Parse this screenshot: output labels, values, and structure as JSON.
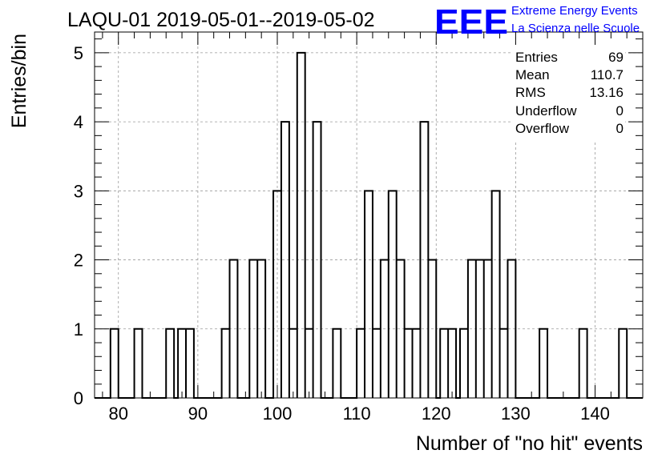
{
  "header": {
    "title": "LAQU-01 2019-05-01--2019-05-02",
    "logo_text": "EEE",
    "logo_line1": "Extreme Energy Events",
    "logo_line2": "La Scienza nelle Scuole",
    "logo_color": "#0000ff"
  },
  "stats": {
    "rows": [
      {
        "label": "Entries",
        "value": "69"
      },
      {
        "label": "Mean",
        "value": "110.7"
      },
      {
        "label": "RMS",
        "value": "13.16"
      },
      {
        "label": "Underflow",
        "value": "0"
      },
      {
        "label": "Overflow",
        "value": "0"
      }
    ]
  },
  "chart_data": {
    "type": "histogram",
    "title": "LAQU-01 2019-05-01--2019-05-02",
    "xlabel": "Number of \"no hit\" events",
    "ylabel": "Entries/bin",
    "xlim": [
      77,
      146
    ],
    "ylim": [
      0,
      5.3
    ],
    "bin_width": 1,
    "grid": true,
    "x_ticks": [
      80,
      90,
      100,
      110,
      120,
      130,
      140
    ],
    "y_ticks": [
      0,
      1,
      2,
      3,
      4,
      5
    ],
    "bins": [
      {
        "x": 79.5,
        "count": 1
      },
      {
        "x": 82.5,
        "count": 1
      },
      {
        "x": 86.5,
        "count": 1
      },
      {
        "x": 88,
        "count": 1
      },
      {
        "x": 89,
        "count": 1
      },
      {
        "x": 93.5,
        "count": 1
      },
      {
        "x": 94.5,
        "count": 2
      },
      {
        "x": 97,
        "count": 2
      },
      {
        "x": 98,
        "count": 2
      },
      {
        "x": 100,
        "count": 3
      },
      {
        "x": 101,
        "count": 4
      },
      {
        "x": 102,
        "count": 1
      },
      {
        "x": 103,
        "count": 5
      },
      {
        "x": 104,
        "count": 1
      },
      {
        "x": 105,
        "count": 4
      },
      {
        "x": 107.5,
        "count": 1
      },
      {
        "x": 110.5,
        "count": 1
      },
      {
        "x": 111.5,
        "count": 3
      },
      {
        "x": 112.5,
        "count": 1
      },
      {
        "x": 113.5,
        "count": 2
      },
      {
        "x": 114.5,
        "count": 3
      },
      {
        "x": 115.5,
        "count": 2
      },
      {
        "x": 116.5,
        "count": 1
      },
      {
        "x": 117.5,
        "count": 1
      },
      {
        "x": 118.5,
        "count": 4
      },
      {
        "x": 119.5,
        "count": 2
      },
      {
        "x": 121,
        "count": 1
      },
      {
        "x": 122,
        "count": 1
      },
      {
        "x": 123.5,
        "count": 1
      },
      {
        "x": 124.5,
        "count": 2
      },
      {
        "x": 125.5,
        "count": 2
      },
      {
        "x": 126.5,
        "count": 2
      },
      {
        "x": 127.5,
        "count": 3
      },
      {
        "x": 128.5,
        "count": 1
      },
      {
        "x": 129.5,
        "count": 2
      },
      {
        "x": 133.5,
        "count": 1
      },
      {
        "x": 138.5,
        "count": 1
      },
      {
        "x": 143.5,
        "count": 1
      }
    ]
  }
}
